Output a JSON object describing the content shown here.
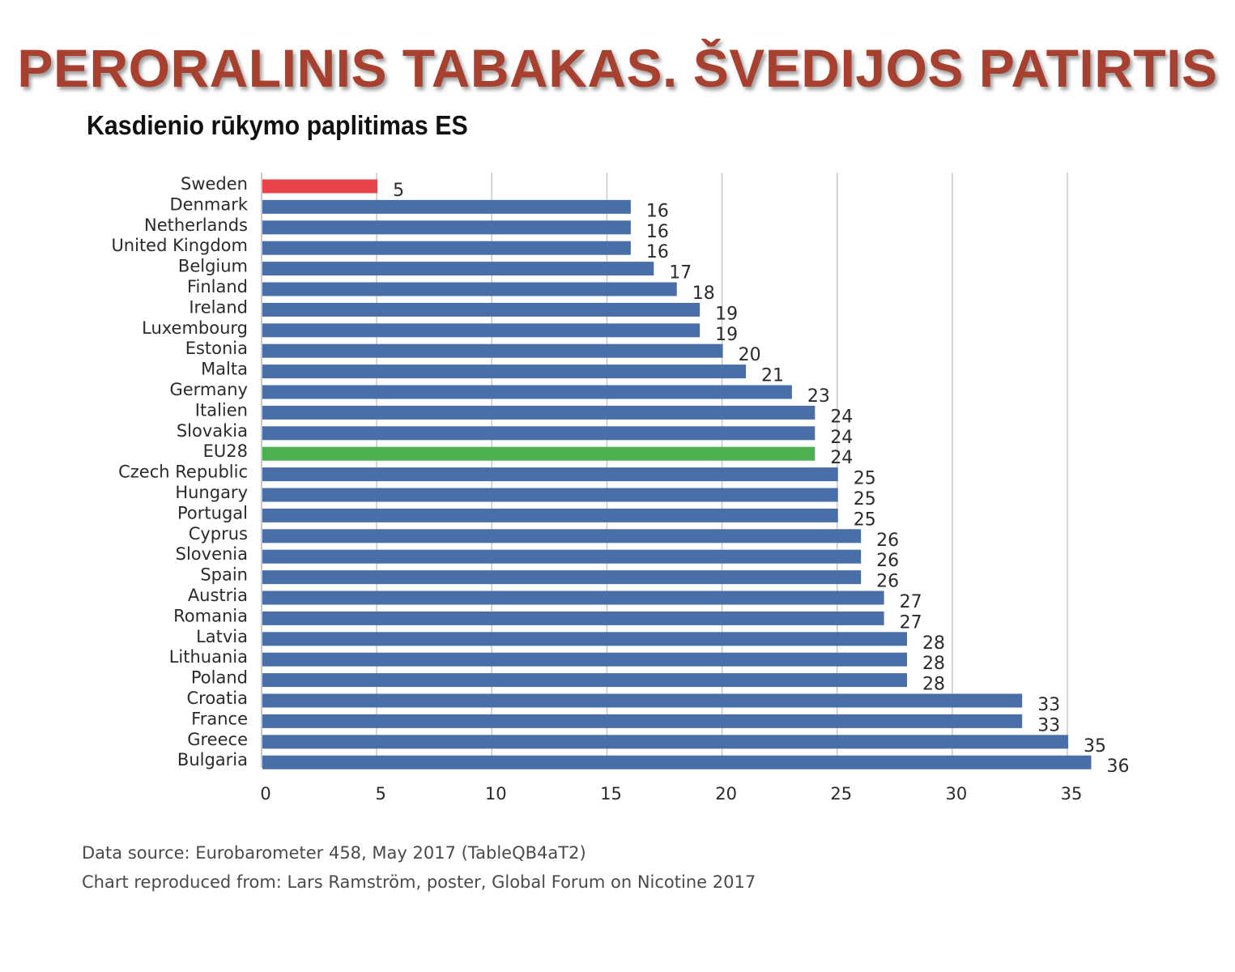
{
  "slide": {
    "title": "PERORALINIS TABAKAS. ŠVEDIJOS PATIRTIS",
    "subtitle": "Kasdienio rūkymo paplitimas ES"
  },
  "footnotes": {
    "source": "Data source: Eurobarometer 458, May 2017 (TableQB4aT2)",
    "reproduced": "Chart reproduced from: Lars Ramström, poster, Global Forum on Nicotine 2017"
  },
  "chart_data": {
    "type": "bar",
    "orientation": "horizontal",
    "title": "Kasdienio rūkymo paplitimas ES",
    "xlabel": "",
    "ylabel": "",
    "xlim": [
      0,
      36
    ],
    "xticks": [
      0,
      5,
      10,
      15,
      20,
      25,
      30,
      35
    ],
    "grid": "vertical",
    "categories": [
      "Sweden",
      "Denmark",
      "Netherlands",
      "United Kingdom",
      "Belgium",
      "Finland",
      "Ireland",
      "Luxembourg",
      "Estonia",
      "Malta",
      "Germany",
      "Italien",
      "Slovakia",
      "EU28",
      "Czech Republic",
      "Hungary",
      "Portugal",
      "Cyprus",
      "Slovenia",
      "Spain",
      "Austria",
      "Romania",
      "Latvia",
      "Lithuania",
      "Poland",
      "Croatia",
      "France",
      "Greece",
      "Bulgaria"
    ],
    "values": [
      5,
      16,
      16,
      16,
      17,
      18,
      19,
      19,
      20,
      21,
      23,
      24,
      24,
      24,
      25,
      25,
      25,
      26,
      26,
      26,
      27,
      27,
      28,
      28,
      28,
      33,
      33,
      35,
      36
    ],
    "colors": {
      "default": "#4a6fa8",
      "highlight": {
        "Sweden": "#e8434a",
        "EU28": "#4caf50"
      }
    }
  }
}
